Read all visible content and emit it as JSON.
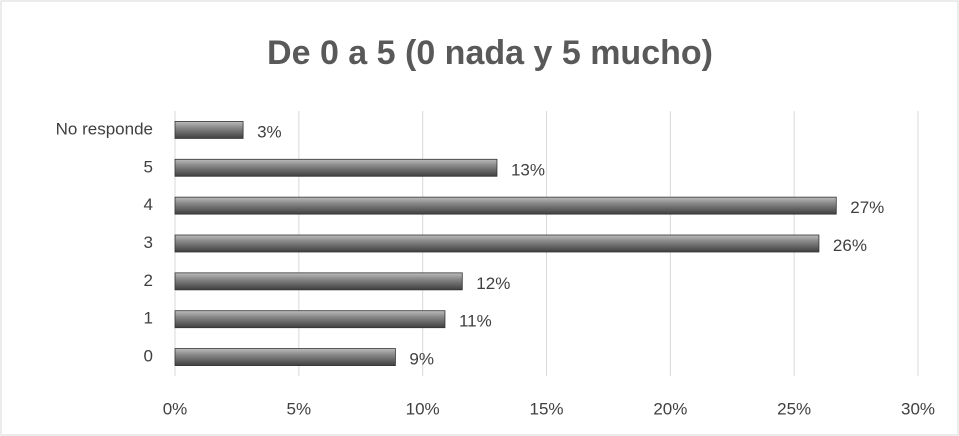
{
  "chart_data": {
    "type": "barh",
    "title": "De 0 a 5 (0 nada y 5 mucho)",
    "categories": [
      "No responde",
      "5",
      "4",
      "3",
      "2",
      "1",
      "0"
    ],
    "values": [
      2.75,
      13,
      26.7,
      26,
      11.6,
      10.9,
      8.9
    ],
    "value_labels": [
      "3%",
      "13%",
      "27%",
      "26%",
      "12%",
      "11%",
      "9%"
    ],
    "color": "#6e6e6e",
    "xlim": [
      0,
      30
    ],
    "xticks": [
      {
        "value": 0,
        "label": "0%"
      },
      {
        "value": 5,
        "label": "5%"
      },
      {
        "value": 10,
        "label": "10%"
      },
      {
        "value": 15,
        "label": "15%"
      },
      {
        "value": 20,
        "label": "20%"
      },
      {
        "value": 25,
        "label": "25%"
      },
      {
        "value": 30,
        "label": "30%"
      }
    ],
    "grid": true
  }
}
